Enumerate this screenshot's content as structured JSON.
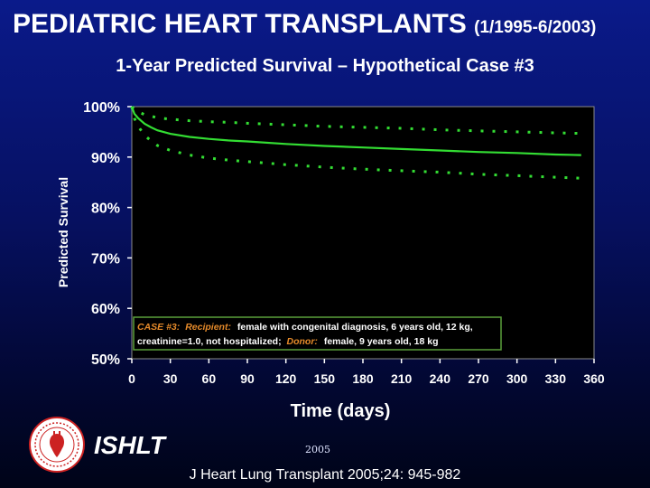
{
  "header": {
    "title": "PEDIATRIC HEART TRANSPLANTS",
    "date_range": "(1/1995-6/2003)",
    "subtitle": "1-Year Predicted Survival – Hypothetical Case #3"
  },
  "chart_data": {
    "type": "line",
    "xlabel": "Time (days)",
    "ylabel": "Predicted Survival",
    "xlim": [
      0,
      360
    ],
    "ylim": [
      50,
      100
    ],
    "x_ticks": [
      "0",
      "30",
      "60",
      "90",
      "120",
      "150",
      "180",
      "210",
      "240",
      "270",
      "300",
      "330",
      "360"
    ],
    "y_ticks": [
      "50%",
      "60%",
      "70%",
      "80%",
      "90%",
      "100%"
    ],
    "colors": {
      "line": "#33dd33",
      "plot_bg": "#000000",
      "box_border": "#5aa03a",
      "legend_orange": "#e58a2a"
    },
    "series": [
      {
        "style": "solid",
        "x": [
          0,
          2,
          5,
          10,
          15,
          20,
          30,
          45,
          60,
          75,
          90,
          120,
          150,
          180,
          210,
          240,
          270,
          300,
          330,
          350
        ],
        "y": [
          100,
          98.6,
          97.7,
          96.6,
          95.9,
          95.3,
          94.6,
          94.0,
          93.6,
          93.3,
          93.1,
          92.6,
          92.2,
          91.9,
          91.6,
          91.3,
          91.0,
          90.8,
          90.5,
          90.4
        ]
      },
      {
        "style": "dotted",
        "x": [
          0,
          2,
          5,
          10,
          15,
          20,
          30,
          45,
          60,
          75,
          90,
          120,
          150,
          180,
          210,
          240,
          270,
          300,
          330,
          350
        ],
        "y": [
          100,
          99.5,
          99.0,
          98.4,
          98.1,
          97.8,
          97.5,
          97.2,
          97.0,
          96.9,
          96.7,
          96.4,
          96.1,
          95.9,
          95.7,
          95.4,
          95.2,
          95.0,
          94.8,
          94.7
        ]
      },
      {
        "style": "dotted",
        "x": [
          0,
          2,
          5,
          10,
          15,
          20,
          30,
          45,
          60,
          75,
          90,
          120,
          150,
          180,
          210,
          240,
          270,
          300,
          330,
          350
        ],
        "y": [
          100,
          97.7,
          96.1,
          94.3,
          93.2,
          92.3,
          91.3,
          90.4,
          89.8,
          89.4,
          89.1,
          88.5,
          88.0,
          87.6,
          87.3,
          87.0,
          86.6,
          86.3,
          86.0,
          85.8
        ]
      }
    ],
    "legend_box": {
      "case_label": "CASE #3:",
      "recipient_label": "Recipient:",
      "recipient_text": "female with congenital diagnosis, 6 years old, 12 kg,",
      "line2_text": "creatinine=1.0, not hospitalized;",
      "donor_label": "Donor:",
      "donor_text": "female, 9 years old, 18 kg"
    }
  },
  "footer": {
    "org": "ISHLT",
    "year": "2005",
    "citation": "J Heart Lung Transplant 2005;24: 945-982",
    "logo_icon": "ishlt-seal-icon"
  }
}
